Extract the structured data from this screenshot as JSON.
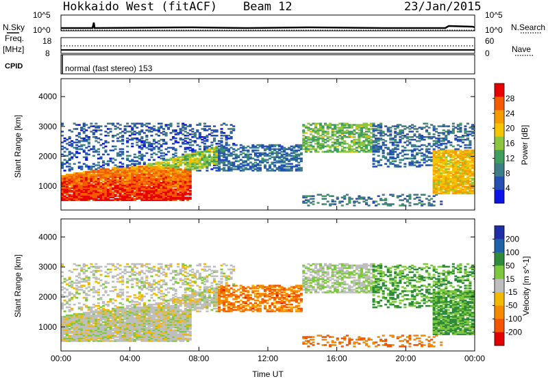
{
  "header": {
    "station": "Hokkaido West (fitACF)",
    "beam": "Beam 12",
    "date": "23/Jan/2015"
  },
  "status_panel": {
    "n_sky_label": "N.Sky",
    "n_search_label": "N.Search",
    "n_scale_top": "10^5",
    "n_scale_bottom": "10^0",
    "freq_label": "Freq.",
    "freq_unit": "[MHz]",
    "freq_ticks": [
      "18",
      "8"
    ],
    "nave_label": "Nave",
    "nave_ticks": [
      "60",
      "0"
    ],
    "cpid_label": "CPID",
    "cpid_text": "normal (fast stereo) 153"
  },
  "colors": {
    "power_scale": [
      "#0a14e6",
      "#2550b3",
      "#3d7d86",
      "#3f9e5c",
      "#8cc63f",
      "#f5c400",
      "#f79a00",
      "#f55a00",
      "#e80000"
    ],
    "velocity_scale": [
      "#1f2ea8",
      "#1f62a8",
      "#2f8a3a",
      "#7dc83c",
      "#bebebe",
      "#f5b800",
      "#f58a00",
      "#f25400",
      "#e10000"
    ]
  },
  "chart_data": [
    {
      "type": "heatmap",
      "title": "",
      "xlabel": "",
      "ylabel": "Slant Range [km]",
      "x_ticks": [
        "00:00",
        "04:00",
        "08:00",
        "12:00",
        "16:00",
        "20:00",
        "00:00"
      ],
      "y_ticks": [
        1000,
        2000,
        3000,
        4000
      ],
      "ylim": [
        200,
        4600
      ],
      "xlim_hours": [
        0,
        24
      ],
      "colorbar": {
        "label": "Power [dB]",
        "ticks": [
          4,
          8,
          12,
          16,
          20,
          24,
          28
        ],
        "range": [
          0,
          32
        ]
      }
    },
    {
      "type": "heatmap",
      "title": "",
      "xlabel": "Time UT",
      "ylabel": "Slant Range [km]",
      "x_ticks": [
        "00:00",
        "04:00",
        "08:00",
        "12:00",
        "16:00",
        "20:00",
        "00:00"
      ],
      "y_ticks": [
        1000,
        2000,
        3000,
        4000
      ],
      "ylim": [
        200,
        4600
      ],
      "xlim_hours": [
        0,
        24
      ],
      "colorbar": {
        "label": "Velocity [m s^-1]",
        "ticks": [
          200,
          100,
          50,
          15,
          -15,
          -50,
          -100,
          -200
        ]
      }
    }
  ]
}
